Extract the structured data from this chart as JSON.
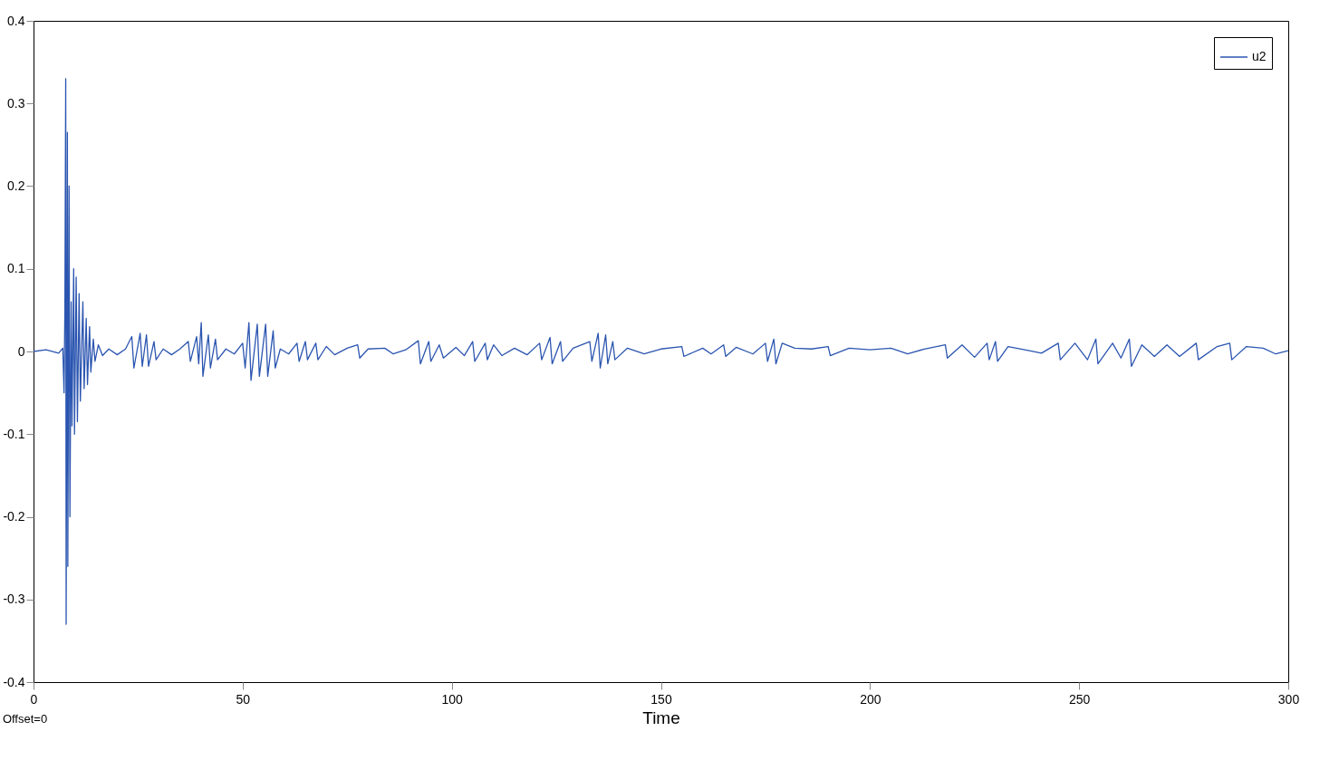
{
  "chart_data": {
    "type": "line",
    "xlabel": "Time",
    "annotations": [
      "Offset=0"
    ],
    "xlim": [
      0,
      300
    ],
    "xticks": [
      0,
      50,
      100,
      150,
      200,
      250,
      300
    ],
    "ylim": [
      -0.4,
      0.4
    ],
    "yticks": [
      -0.4,
      -0.3,
      -0.2,
      -0.1,
      0,
      0.1,
      0.2,
      0.3,
      0.4
    ],
    "grid": false,
    "legend": "top right",
    "line_style": "solid",
    "x": [
      0,
      3,
      6,
      7,
      7.3,
      7.5,
      7.7,
      7.8,
      8.1,
      8.2,
      8.5,
      8.7,
      9.0,
      9.2,
      9.6,
      9.8,
      10.2,
      10.5,
      10.9,
      11.2,
      11.8,
      12.1,
      12.6,
      12.9,
      13.4,
      13.7,
      14.3,
      14.7,
      15.5,
      16.5,
      18,
      20,
      22,
      23.5,
      24,
      25.5,
      26,
      27,
      27.5,
      28.8,
      29.3,
      31,
      33,
      35,
      37,
      37.5,
      39,
      39.5,
      40.1,
      40.5,
      41.8,
      42.3,
      43.5,
      44,
      46,
      48,
      50,
      50.6,
      51.5,
      52,
      53.5,
      54,
      55.5,
      56,
      57.3,
      57.8,
      59,
      61,
      63,
      63.5,
      65,
      65.5,
      67.5,
      68,
      70,
      72,
      75,
      77.5,
      78,
      80,
      84,
      86,
      89,
      92,
      92.5,
      94.5,
      95,
      97,
      98,
      101,
      103,
      105,
      105.5,
      108,
      108.5,
      110,
      112,
      115,
      118,
      121,
      121.5,
      123.5,
      124,
      126,
      126.5,
      129,
      133,
      133.5,
      135,
      135.5,
      136.8,
      137.3,
      138.5,
      139,
      142,
      146,
      150,
      155,
      155.5,
      160,
      162,
      165,
      165.5,
      168,
      172,
      175,
      175.5,
      177,
      177.5,
      179,
      182,
      186,
      190,
      190.5,
      195,
      200,
      205,
      209,
      213,
      218,
      218.5,
      222,
      225,
      228,
      228.5,
      230,
      230.5,
      233,
      237,
      241,
      245,
      245.5,
      249,
      252,
      254,
      254.5,
      258,
      260,
      262,
      262.5,
      265,
      268,
      271,
      274,
      278,
      278.5,
      283,
      286,
      286.5,
      290,
      294,
      297,
      300
    ],
    "series": [
      {
        "name": "u2",
        "color": "#2b55b0",
        "values": [
          0,
          0.002,
          -0.002,
          0.004,
          -0.05,
          0.05,
          0.33,
          -0.33,
          0.265,
          -0.26,
          0.2,
          -0.2,
          0.06,
          -0.09,
          0.1,
          -0.1,
          0.09,
          -0.085,
          0.07,
          -0.06,
          0.06,
          -0.045,
          0.04,
          -0.04,
          0.03,
          -0.025,
          0.015,
          -0.012,
          0.008,
          -0.005,
          0.003,
          -0.004,
          0.003,
          0.018,
          -0.02,
          0.022,
          -0.018,
          0.02,
          -0.018,
          0.012,
          -0.01,
          0.003,
          -0.004,
          0.003,
          0.012,
          -0.012,
          0.018,
          -0.015,
          0.035,
          -0.03,
          0.02,
          -0.02,
          0.015,
          -0.01,
          0.003,
          -0.003,
          0.01,
          -0.02,
          0.035,
          -0.035,
          0.033,
          -0.03,
          0.033,
          -0.03,
          0.025,
          -0.02,
          0.003,
          -0.003,
          0.01,
          -0.012,
          0.012,
          -0.01,
          0.01,
          -0.01,
          0.006,
          -0.004,
          0.004,
          0.008,
          -0.008,
          0.003,
          0.004,
          -0.003,
          0.002,
          0.013,
          -0.015,
          0.012,
          -0.012,
          0.008,
          -0.008,
          0.005,
          -0.005,
          0.012,
          -0.012,
          0.01,
          -0.01,
          0.008,
          -0.005,
          0.004,
          -0.004,
          0.01,
          -0.01,
          0.017,
          -0.015,
          0.012,
          -0.012,
          0.004,
          0.012,
          -0.012,
          0.022,
          -0.02,
          0.02,
          -0.015,
          0.012,
          -0.01,
          0.004,
          -0.003,
          0.003,
          0.006,
          -0.006,
          0.004,
          -0.003,
          0.008,
          -0.006,
          0.005,
          -0.003,
          0.01,
          -0.012,
          0.015,
          -0.015,
          0.01,
          0.004,
          0.003,
          0.006,
          -0.005,
          0.004,
          0.002,
          0.004,
          -0.003,
          0.003,
          0.008,
          -0.008,
          0.008,
          -0.007,
          0.01,
          -0.01,
          0.012,
          -0.012,
          0.006,
          0.002,
          -0.002,
          0.01,
          -0.01,
          0.01,
          -0.01,
          0.015,
          -0.015,
          0.01,
          -0.008,
          0.015,
          -0.018,
          0.008,
          -0.006,
          0.008,
          -0.006,
          0.01,
          -0.01,
          0.006,
          0.01,
          -0.01,
          0.006,
          0.004,
          -0.003,
          0.001
        ]
      }
    ]
  }
}
